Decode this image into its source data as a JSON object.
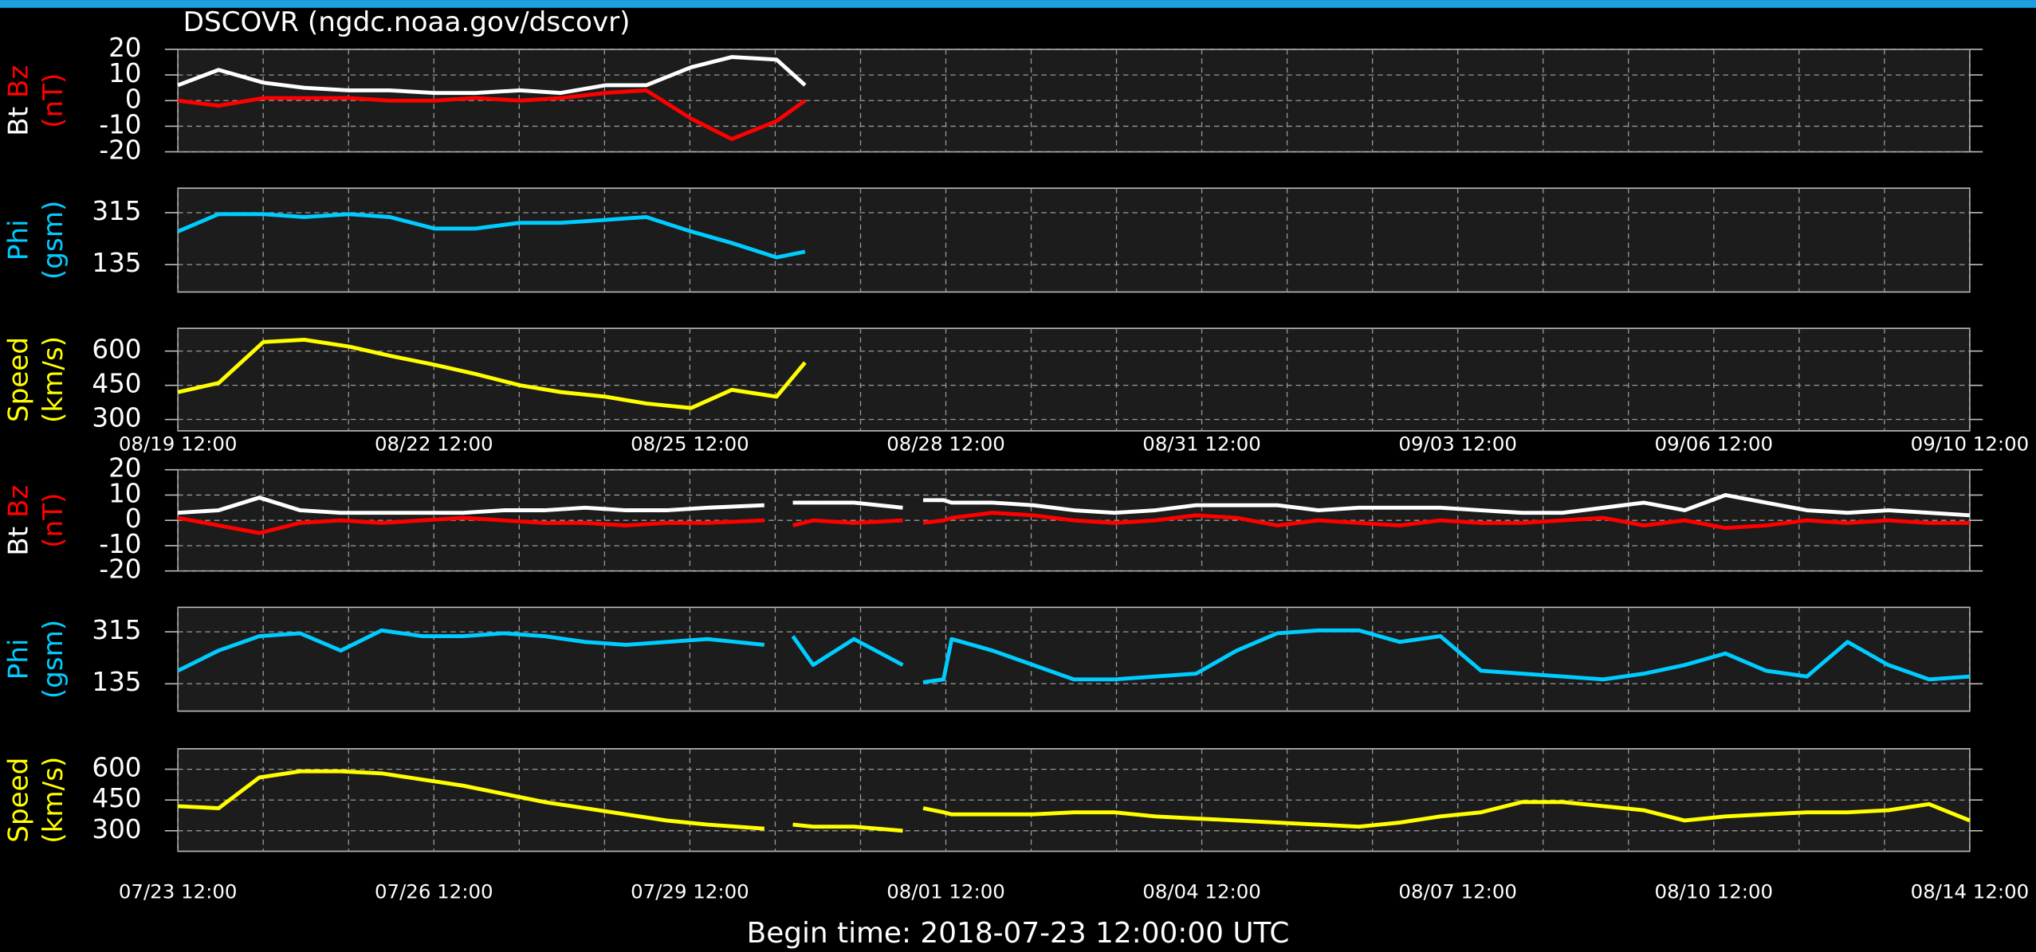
{
  "title": "DSCOVR (ngdc.noaa.gov/dscovr)",
  "footer": "Begin time: 2018-07-23 12:00:00 UTC",
  "chart_data": [
    {
      "type": "line",
      "ylabel": "(nT)",
      "ylabel_color": "#ff0000",
      "grid": true,
      "x": [
        0,
        0.5,
        1.05,
        1.55,
        2.1,
        2.6,
        3.15,
        3.65,
        4.2,
        4.7,
        5.25,
        5.75,
        6.3,
        6.8,
        7.35,
        7.7
      ],
      "xlim": [
        0,
        22
      ],
      "ylim": [
        -20,
        20
      ],
      "yticks": [
        20,
        10,
        0,
        -10,
        -20
      ],
      "series": [
        {
          "name": "Bt",
          "color": "#ffffff",
          "values": [
            6,
            12,
            7,
            5,
            4,
            4,
            3,
            3,
            4,
            3,
            6,
            6,
            13,
            17,
            16,
            6
          ]
        },
        {
          "name": "Bz",
          "color": "#ff0000",
          "values": [
            0,
            -2,
            1,
            1,
            1,
            0,
            0,
            1,
            0,
            1,
            3,
            4,
            -7,
            -15,
            -8,
            0
          ]
        }
      ]
    },
    {
      "type": "line",
      "ylabel": "(gsm)",
      "ylabel_color": "#00ccff",
      "grid": true,
      "x": [
        0,
        0.5,
        1.05,
        1.55,
        2.1,
        2.6,
        3.15,
        3.65,
        4.2,
        4.7,
        5.25,
        5.75,
        6.3,
        6.8,
        7.35,
        7.7
      ],
      "xlim": [
        0,
        22
      ],
      "ylim": [
        40,
        400
      ],
      "yticks": [
        315,
        135
      ],
      "series": [
        {
          "name": "Phi",
          "color": "#00ccff",
          "values": [
            250,
            310,
            310,
            300,
            310,
            300,
            260,
            260,
            280,
            280,
            290,
            300,
            250,
            210,
            160,
            180
          ]
        }
      ]
    },
    {
      "type": "line",
      "ylabel": "(km/s)",
      "ylabel_color": "#ffff00",
      "grid": true,
      "x": [
        0,
        0.5,
        1.05,
        1.55,
        2.1,
        2.6,
        3.15,
        3.65,
        4.2,
        4.7,
        5.25,
        5.75,
        6.3,
        6.8,
        7.35,
        7.7
      ],
      "xlim": [
        0,
        22
      ],
      "ylim": [
        250,
        700
      ],
      "yticks": [
        600,
        450,
        300
      ],
      "xticks": [
        {
          "value": 0,
          "label": "08/19 12:00"
        },
        {
          "value": 3.143,
          "label": "08/22 12:00"
        },
        {
          "value": 6.286,
          "label": "08/25 12:00"
        },
        {
          "value": 9.429,
          "label": "08/28 12:00"
        },
        {
          "value": 12.571,
          "label": "08/31 12:00"
        },
        {
          "value": 15.714,
          "label": "09/03 12:00"
        },
        {
          "value": 18.857,
          "label": "09/06 12:00"
        },
        {
          "value": 22,
          "label": "09/10 12:00"
        }
      ],
      "series": [
        {
          "name": "Speed",
          "color": "#ffff00",
          "values": [
            420,
            460,
            640,
            650,
            620,
            580,
            540,
            500,
            450,
            420,
            400,
            370,
            350,
            430,
            400,
            550
          ]
        }
      ]
    },
    {
      "type": "line",
      "ylabel": "(nT)",
      "ylabel_color": "#ff0000",
      "grid": true,
      "x": [
        0,
        0.5,
        1,
        1.5,
        2,
        2.5,
        3,
        3.5,
        4,
        4.5,
        5,
        5.5,
        6,
        6.5,
        7.2,
        7.35,
        7.55,
        7.8,
        8.3,
        8.9,
        9.0,
        9.15,
        9.4,
        9.5,
        10,
        10.5,
        11,
        11.5,
        12,
        12.5,
        13,
        13.5,
        14,
        14.5,
        15,
        15.5,
        16,
        16.5,
        17,
        17.5,
        18,
        18.5,
        19,
        19.5,
        20,
        20.5,
        21,
        21.5,
        22
      ],
      "xlim": [
        0,
        22
      ],
      "ylim": [
        -20,
        20
      ],
      "yticks": [
        20,
        10,
        0,
        -10,
        -20
      ],
      "series": [
        {
          "name": "Bt",
          "color": "#ffffff",
          "values": [
            3,
            4,
            9,
            4,
            3,
            3,
            3,
            3,
            4,
            4,
            5,
            4,
            4,
            5,
            6,
            null,
            7,
            7,
            7,
            5,
            null,
            8,
            8,
            7,
            7,
            6,
            4,
            3,
            4,
            6,
            6,
            6,
            4,
            5,
            5,
            5,
            4,
            3,
            3,
            5,
            7,
            4,
            10,
            7,
            4,
            3,
            4,
            3,
            2
          ]
        },
        {
          "name": "Bz",
          "color": "#ff0000",
          "values": [
            1,
            -2,
            -5,
            -1,
            0,
            -1,
            0,
            1,
            0,
            -1,
            -1,
            -2,
            -1,
            -1,
            0,
            null,
            -2,
            0,
            -1,
            0,
            null,
            -1,
            0,
            1,
            3,
            2,
            0,
            -1,
            0,
            2,
            1,
            -2,
            0,
            -1,
            -2,
            0,
            -1,
            -1,
            0,
            1,
            -2,
            0,
            -3,
            -2,
            0,
            -1,
            0,
            -1,
            -1
          ]
        }
      ]
    },
    {
      "type": "line",
      "ylabel": "(gsm)",
      "ylabel_color": "#00ccff",
      "grid": true,
      "x": [
        0,
        0.5,
        1,
        1.5,
        2,
        2.5,
        3,
        3.5,
        4,
        4.5,
        5,
        5.5,
        6,
        6.5,
        7.2,
        7.35,
        7.55,
        7.8,
        8.3,
        8.9,
        9.0,
        9.15,
        9.4,
        9.5,
        10,
        10.5,
        11,
        11.5,
        12,
        12.5,
        13,
        13.5,
        14,
        14.5,
        15,
        15.5,
        16,
        16.5,
        17,
        17.5,
        18,
        18.5,
        19,
        19.5,
        20,
        20.5,
        21,
        21.5,
        22
      ],
      "xlim": [
        0,
        22
      ],
      "ylim": [
        40,
        400
      ],
      "yticks": [
        315,
        135
      ],
      "series": [
        {
          "name": "Phi",
          "color": "#00ccff",
          "values": [
            180,
            250,
            300,
            310,
            250,
            320,
            300,
            300,
            310,
            300,
            280,
            270,
            280,
            290,
            270,
            null,
            300,
            200,
            290,
            200,
            null,
            140,
            150,
            290,
            250,
            200,
            150,
            150,
            160,
            170,
            250,
            310,
            320,
            320,
            280,
            300,
            180,
            170,
            160,
            150,
            170,
            200,
            240,
            180,
            160,
            280,
            200,
            150,
            160
          ]
        }
      ]
    },
    {
      "type": "line",
      "ylabel": "(km/s)",
      "ylabel_color": "#ffff00",
      "grid": true,
      "x": [
        0,
        0.5,
        1,
        1.5,
        2,
        2.5,
        3,
        3.5,
        4,
        4.5,
        5,
        5.5,
        6,
        6.5,
        7.2,
        7.35,
        7.55,
        7.8,
        8.3,
        8.9,
        9.0,
        9.15,
        9.4,
        9.5,
        10,
        10.5,
        11,
        11.5,
        12,
        12.5,
        13,
        13.5,
        14,
        14.5,
        15,
        15.5,
        16,
        16.5,
        17,
        17.5,
        18,
        18.5,
        19,
        19.5,
        20,
        20.5,
        21,
        21.5,
        22
      ],
      "xlim": [
        0,
        22
      ],
      "ylim": [
        200,
        700
      ],
      "yticks": [
        600,
        450,
        300
      ],
      "xticks": [
        {
          "value": 0,
          "label": "07/23 12:00"
        },
        {
          "value": 3.143,
          "label": "07/26 12:00"
        },
        {
          "value": 6.286,
          "label": "07/29 12:00"
        },
        {
          "value": 9.429,
          "label": "08/01 12:00"
        },
        {
          "value": 12.571,
          "label": "08/04 12:00"
        },
        {
          "value": 15.714,
          "label": "08/07 12:00"
        },
        {
          "value": 18.857,
          "label": "08/10 12:00"
        },
        {
          "value": 22,
          "label": "08/14 12:00"
        }
      ],
      "series": [
        {
          "name": "Speed",
          "color": "#ffff00",
          "values": [
            420,
            410,
            560,
            590,
            590,
            580,
            550,
            520,
            480,
            440,
            410,
            380,
            350,
            330,
            310,
            null,
            330,
            320,
            320,
            300,
            null,
            410,
            390,
            380,
            380,
            380,
            390,
            390,
            370,
            360,
            350,
            340,
            330,
            320,
            340,
            370,
            390,
            440,
            440,
            420,
            400,
            350,
            370,
            380,
            390,
            390,
            400,
            430,
            350
          ]
        }
      ]
    }
  ]
}
